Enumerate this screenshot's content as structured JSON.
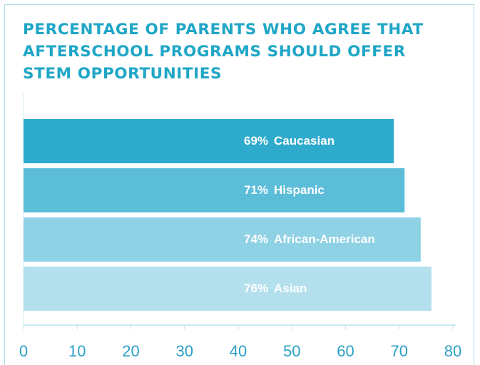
{
  "chart_data": {
    "type": "hbar",
    "title": "PERCENTAGE OF PARENTS WHO AGREE THAT AFTERSCHOOL PROGRAMS SHOULD OFFER STEM OPPORTUNITIES",
    "categories": [
      "Caucasian",
      "Hispanic",
      "African-American",
      "Asian"
    ],
    "values": [
      69,
      71,
      74,
      76
    ],
    "value_labels": [
      "69%",
      "71%",
      "74%",
      "76%"
    ],
    "colors": [
      "#2eaacd",
      "#5cbdd9",
      "#8fd1e5",
      "#b4e0ee"
    ],
    "xlim": [
      0,
      80
    ],
    "xticks": [
      0,
      10,
      20,
      30,
      40,
      50,
      60,
      70,
      80
    ]
  }
}
